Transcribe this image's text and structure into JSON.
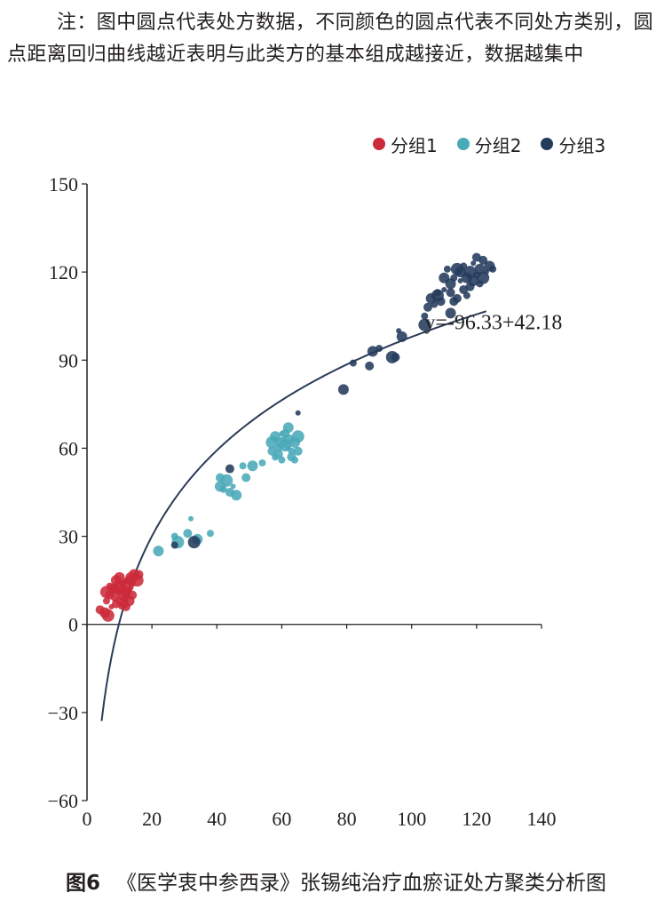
{
  "note": "注：图中圆点代表处方数据，不同颜色的圆点代表不同处方类别，圆点距离回归曲线越近表明与此类方的基本组成越接近，数据越集中",
  "legend": [
    {
      "label": "分组1",
      "color": "#cc2a3a"
    },
    {
      "label": "分组2",
      "color": "#4aa9b7"
    },
    {
      "label": "分组3",
      "color": "#243b5c"
    }
  ],
  "caption": {
    "number": "图6",
    "text": "《医学衷中参西录》张锡纯治疗血瘀证处方聚类分析图"
  },
  "colors": {
    "curve": "#2b3b57",
    "axis": "#231f20"
  },
  "chart_data": {
    "type": "scatter",
    "xlim": [
      0,
      140
    ],
    "ylim": [
      -60,
      150
    ],
    "xticks": [
      0,
      20,
      40,
      60,
      80,
      100,
      120,
      140
    ],
    "yticks": [
      -60,
      -30,
      0,
      30,
      60,
      90,
      120,
      150
    ],
    "grid": false,
    "legend_position": "top-right",
    "regression": {
      "label": "y=-96.33+42.18",
      "a": -96.33,
      "b": 42.18,
      "form": "logarithmic",
      "x_range": [
        4.5,
        123
      ]
    },
    "series": [
      {
        "name": "分组1",
        "points": [
          [
            4,
            5
          ],
          [
            5.5,
            4
          ],
          [
            6,
            8
          ],
          [
            6.5,
            3
          ],
          [
            7,
            10
          ],
          [
            7.5,
            6
          ],
          [
            8,
            12
          ],
          [
            8.5,
            9
          ],
          [
            9,
            7
          ],
          [
            9,
            15
          ],
          [
            9.5,
            11
          ],
          [
            10,
            13
          ],
          [
            10,
            8
          ],
          [
            10.5,
            6
          ],
          [
            11,
            10
          ],
          [
            11,
            14
          ],
          [
            11.5,
            7
          ],
          [
            12,
            11
          ],
          [
            12,
            9
          ],
          [
            12.5,
            13
          ],
          [
            13,
            15
          ],
          [
            13,
            12
          ],
          [
            13.5,
            16
          ],
          [
            14,
            14
          ],
          [
            14,
            10
          ],
          [
            14.5,
            17
          ],
          [
            15,
            16
          ],
          [
            15.5,
            15
          ],
          [
            12,
            6
          ],
          [
            8,
            11
          ],
          [
            10,
            16
          ],
          [
            7,
            13
          ],
          [
            16,
            17
          ],
          [
            13,
            8
          ],
          [
            11,
            12
          ],
          [
            6,
            11
          ],
          [
            9,
            12
          ],
          [
            12,
            15
          ]
        ]
      },
      {
        "name": "分组2",
        "points": [
          [
            22,
            25
          ],
          [
            27,
            30
          ],
          [
            28,
            28
          ],
          [
            31,
            31
          ],
          [
            32,
            36
          ],
          [
            34,
            29
          ],
          [
            38,
            31
          ],
          [
            41,
            50
          ],
          [
            41,
            47
          ],
          [
            42,
            46
          ],
          [
            43,
            49
          ],
          [
            44,
            45
          ],
          [
            45,
            47
          ],
          [
            46,
            44
          ],
          [
            48,
            54
          ],
          [
            49,
            50
          ],
          [
            51,
            54
          ],
          [
            54,
            55
          ],
          [
            57,
            62
          ],
          [
            57,
            59
          ],
          [
            58,
            63
          ],
          [
            58,
            64
          ],
          [
            59,
            60
          ],
          [
            59,
            58
          ],
          [
            60,
            62
          ],
          [
            60,
            56
          ],
          [
            61,
            61
          ],
          [
            61,
            65
          ],
          [
            62,
            60
          ],
          [
            62,
            63
          ],
          [
            63,
            59
          ],
          [
            63,
            57
          ],
          [
            64,
            62
          ],
          [
            64,
            56
          ],
          [
            65,
            64
          ],
          [
            65,
            59
          ],
          [
            60,
            65
          ],
          [
            62,
            67
          ],
          [
            58,
            57
          ]
        ]
      },
      {
        "name": "分组3",
        "points": [
          [
            27,
            27
          ],
          [
            33,
            28
          ],
          [
            44,
            53
          ],
          [
            65,
            72
          ],
          [
            79,
            80
          ],
          [
            82,
            89
          ],
          [
            87,
            88
          ],
          [
            88,
            93
          ],
          [
            90,
            94
          ],
          [
            94,
            91
          ],
          [
            95,
            91
          ],
          [
            96,
            100
          ],
          [
            97,
            98
          ],
          [
            104,
            105
          ],
          [
            105,
            108
          ],
          [
            106,
            111
          ],
          [
            107,
            109
          ],
          [
            108,
            112
          ],
          [
            109,
            110
          ],
          [
            110,
            114
          ],
          [
            110,
            118
          ],
          [
            111,
            121
          ],
          [
            112,
            113
          ],
          [
            112,
            116
          ],
          [
            113,
            118
          ],
          [
            114,
            121
          ],
          [
            114,
            111
          ],
          [
            115,
            117
          ],
          [
            115,
            120
          ],
          [
            116,
            122
          ],
          [
            116,
            114
          ],
          [
            117,
            118
          ],
          [
            117,
            112
          ],
          [
            118,
            120
          ],
          [
            118,
            115
          ],
          [
            119,
            123
          ],
          [
            119,
            117
          ],
          [
            120,
            119
          ],
          [
            120,
            125
          ],
          [
            121,
            121
          ],
          [
            121,
            116
          ],
          [
            122,
            118
          ],
          [
            122,
            124
          ],
          [
            123,
            120
          ],
          [
            124,
            122
          ],
          [
            125,
            121
          ],
          [
            113,
            110
          ],
          [
            112,
            106
          ],
          [
            108,
            113
          ],
          [
            104,
            102
          ]
        ]
      }
    ]
  }
}
